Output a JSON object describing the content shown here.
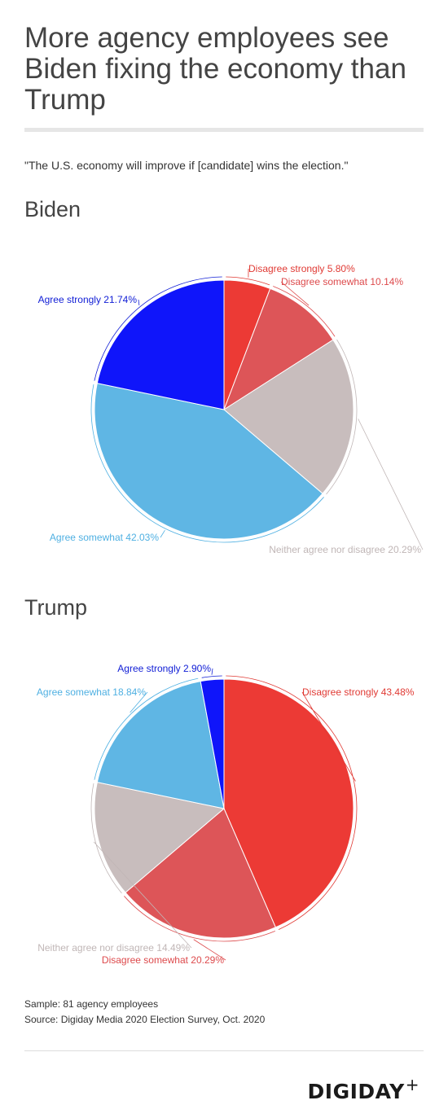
{
  "title": "More agency employees see Biden fixing the economy than Trump",
  "subtitle": "\"The U.S. economy will improve if [candidate] wins the election.\"",
  "chart_data": [
    {
      "type": "pie",
      "title": "Biden",
      "slices": [
        {
          "label": "Disagree strongly",
          "value": 5.8,
          "display": "5.80%",
          "color": "#ec3a35",
          "label_color": "#e03a34"
        },
        {
          "label": "Disagree somewhat",
          "value": 10.14,
          "display": "10.14%",
          "color": "#dd5558",
          "label_color": "#dd4a4c"
        },
        {
          "label": "Neither agree nor disagree",
          "value": 20.29,
          "display": "20.29%",
          "color": "#c8bdbd",
          "label_color": "#c0b6b6"
        },
        {
          "label": "Agree somewhat",
          "value": 42.03,
          "display": "42.03%",
          "color": "#5fb6e4",
          "label_color": "#4fb0e2"
        },
        {
          "label": "Agree strongly",
          "value": 21.74,
          "display": "21.74%",
          "color": "#0f15fa",
          "label_color": "#1320d6"
        }
      ]
    },
    {
      "type": "pie",
      "title": "Trump",
      "slices": [
        {
          "label": "Disagree strongly",
          "value": 43.48,
          "display": "43.48%",
          "color": "#ec3a35",
          "label_color": "#e03a34"
        },
        {
          "label": "Disagree somewhat",
          "value": 20.29,
          "display": "20.29%",
          "color": "#dd5558",
          "label_color": "#dd4a4c"
        },
        {
          "label": "Neither agree nor disagree",
          "value": 14.49,
          "display": "14.49%",
          "color": "#c8bdbd",
          "label_color": "#c0b6b6"
        },
        {
          "label": "Agree somewhat",
          "value": 18.84,
          "display": "18.84%",
          "color": "#5fb6e4",
          "label_color": "#4fb0e2"
        },
        {
          "label": "Agree strongly",
          "value": 2.9,
          "display": "2.90%",
          "color": "#0f15fa",
          "label_color": "#1320d6"
        }
      ]
    }
  ],
  "notes": {
    "sample": "Sample: 81 agency employees",
    "source": "Source: Digiday Media 2020 Election Survey, Oct. 2020"
  },
  "logo": {
    "text": "DIGIDAY",
    "plus": "+"
  }
}
